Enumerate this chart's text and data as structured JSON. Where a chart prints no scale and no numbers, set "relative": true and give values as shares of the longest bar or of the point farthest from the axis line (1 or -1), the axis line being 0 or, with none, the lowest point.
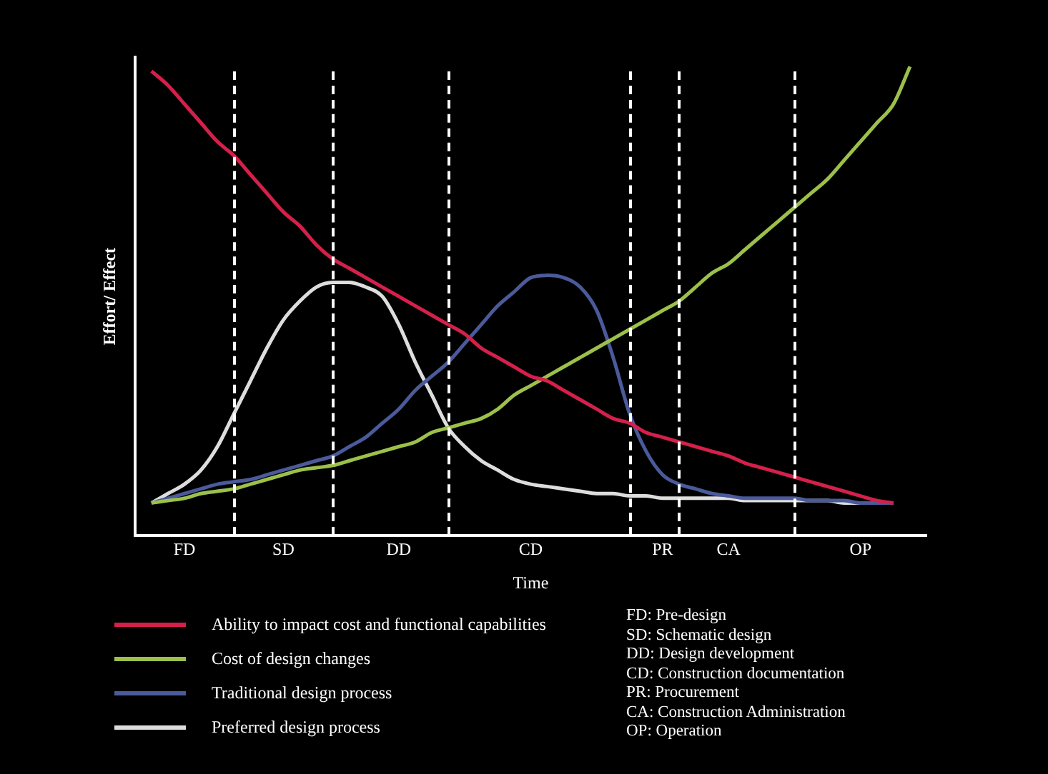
{
  "chart_data": {
    "type": "line",
    "relative": true,
    "xlabel": "Time",
    "ylabel": "Effort/ Effect",
    "categories": [
      null,
      null,
      null,
      "FD",
      null,
      null,
      null,
      null,
      null,
      "SD",
      null,
      null,
      null,
      null,
      null,
      null,
      "DD",
      null,
      null,
      null,
      null,
      null,
      null,
      null,
      "CD",
      null,
      null,
      null,
      null,
      null,
      null,
      null,
      "PR",
      null,
      null,
      null,
      "CA",
      null,
      null,
      null,
      null,
      null,
      null,
      null,
      "OP",
      null,
      null,
      null,
      null
    ],
    "series": [
      {
        "name": "Ability to impact cost and functional capabilities",
        "color": "#d4204a",
        "values": [
          null,
          0.99,
          0.96,
          0.92,
          0.88,
          0.84,
          0.81,
          0.77,
          0.73,
          0.69,
          0.66,
          0.62,
          0.59,
          0.57,
          0.55,
          0.53,
          0.51,
          0.49,
          0.47,
          0.45,
          0.43,
          0.4,
          0.38,
          0.36,
          0.34,
          0.33,
          0.31,
          0.29,
          0.27,
          0.25,
          0.24,
          0.22,
          0.21,
          0.2,
          0.19,
          0.18,
          0.17,
          0.155,
          0.145,
          0.135,
          0.125,
          0.115,
          0.105,
          0.095,
          0.085,
          0.075,
          0.07,
          null,
          null
        ]
      },
      {
        "name": "Cost of design changes",
        "color": "#9cc04a",
        "values": [
          null,
          0.07,
          0.075,
          0.08,
          0.09,
          0.095,
          0.1,
          0.11,
          0.12,
          0.13,
          0.14,
          0.145,
          0.15,
          0.16,
          0.17,
          0.18,
          0.19,
          0.2,
          0.22,
          0.23,
          0.24,
          0.25,
          0.27,
          0.3,
          0.32,
          0.34,
          0.36,
          0.38,
          0.4,
          0.42,
          0.44,
          0.46,
          0.48,
          0.5,
          0.53,
          0.56,
          0.58,
          0.61,
          0.64,
          0.67,
          0.7,
          0.73,
          0.76,
          0.8,
          0.84,
          0.88,
          0.92,
          1,
          null
        ]
      },
      {
        "name": "Traditional design process",
        "color": "#4a5a9a",
        "values": [
          null,
          0.07,
          0.08,
          0.09,
          0.1,
          0.11,
          0.115,
          0.12,
          0.13,
          0.14,
          0.15,
          0.16,
          0.17,
          0.19,
          0.21,
          0.24,
          0.27,
          0.31,
          0.34,
          0.37,
          0.41,
          0.45,
          0.49,
          0.52,
          0.55,
          0.555,
          0.55,
          0.53,
          0.48,
          0.38,
          0.26,
          0.18,
          0.13,
          0.11,
          0.1,
          0.09,
          0.085,
          0.08,
          0.08,
          0.08,
          0.08,
          0.075,
          0.075,
          0.075,
          0.07,
          0.07,
          0.07,
          null,
          null
        ]
      },
      {
        "name": "Preferred design process",
        "color": "#dddddd",
        "values": [
          null,
          0.07,
          0.09,
          0.11,
          0.14,
          0.19,
          0.26,
          0.33,
          0.4,
          0.46,
          0.5,
          0.53,
          0.54,
          0.54,
          0.53,
          0.51,
          0.45,
          0.37,
          0.3,
          0.23,
          0.19,
          0.16,
          0.14,
          0.12,
          0.11,
          0.105,
          0.1,
          0.095,
          0.09,
          0.09,
          0.085,
          0.085,
          0.08,
          0.08,
          0.08,
          0.08,
          0.08,
          0.075,
          0.075,
          0.075,
          0.075,
          0.075,
          0.075,
          0.07,
          0.07,
          0.07,
          0.07,
          null,
          null
        ]
      }
    ],
    "legend": "bottom",
    "grid": "x",
    "marker": "none",
    "line_style": "solid",
    "annotations": [
      "FD: Pre-design",
      "SD: Schematic design",
      "DD: Design development",
      "CD: Construction documentation",
      "PR: Procurement",
      "CA: Construction Administration",
      "OP: Operation"
    ]
  }
}
